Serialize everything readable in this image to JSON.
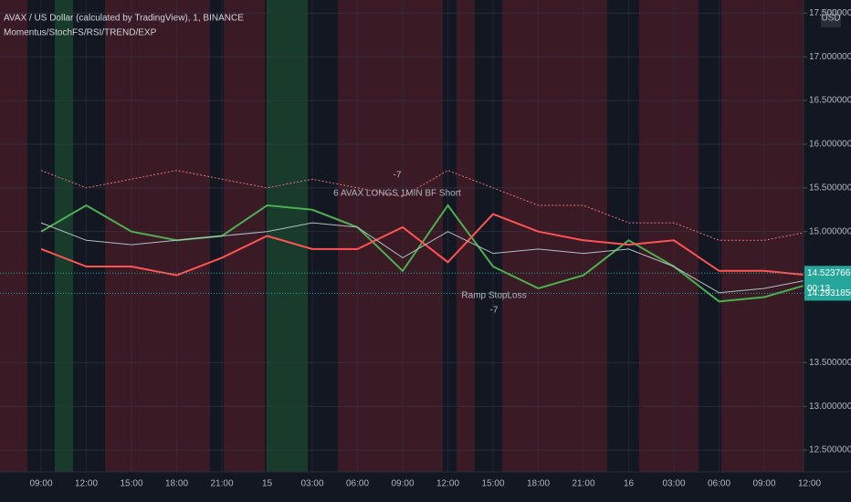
{
  "chart_data": {
    "type": "line",
    "title": "AVAX / US Dollar (calculated by TradingView), 1, BINANCE",
    "subtitle": "Momentus/StochFS/RSI/TREND/EXP",
    "currency": "USD",
    "categories": [
      "09:00",
      "12:00",
      "15:00",
      "18:00",
      "21:00",
      "15",
      "03:00",
      "06:00",
      "09:00",
      "12:00",
      "15:00",
      "18:00",
      "21:00",
      "16",
      "03:00",
      "06:00",
      "09:00",
      "12:00"
    ],
    "series": [
      {
        "color": "#e57373",
        "dash": true,
        "values": [
          15.7,
          15.5,
          15.6,
          15.7,
          15.6,
          15.5,
          15.6,
          15.5,
          15.4,
          15.7,
          15.5,
          15.3,
          15.3,
          15.1,
          15.1,
          14.9,
          14.9,
          15.0
        ]
      },
      {
        "color": "#4caf50",
        "values": [
          15.0,
          15.3,
          15.0,
          14.9,
          14.95,
          15.3,
          15.25,
          15.05,
          14.55,
          15.3,
          14.6,
          14.35,
          14.5,
          14.9,
          14.6,
          14.2,
          14.25,
          14.4
        ]
      },
      {
        "color": "#ff5252",
        "values": [
          14.8,
          14.6,
          14.6,
          14.5,
          14.7,
          14.95,
          14.8,
          14.8,
          15.05,
          14.65,
          15.2,
          15.0,
          14.9,
          14.85,
          14.9,
          14.55,
          14.55,
          14.5
        ]
      },
      {
        "color": "#b0bec5",
        "values": [
          15.1,
          14.9,
          14.85,
          14.9,
          14.95,
          15.0,
          15.1,
          15.05,
          14.7,
          15.0,
          14.75,
          14.8,
          14.75,
          14.8,
          14.6,
          14.3,
          14.35,
          14.45
        ]
      }
    ],
    "ylim": [
      12.25,
      17.65
    ],
    "yticks": [
      {
        "value": 17.5,
        "label": "17.50000000"
      },
      {
        "value": 17,
        "label": "17.00000000"
      },
      {
        "value": 16.5,
        "label": "16.50000000"
      },
      {
        "value": 16,
        "label": "16.00000000"
      },
      {
        "value": 15.5,
        "label": "15.50000000"
      },
      {
        "value": 15,
        "label": "15.00000000"
      },
      {
        "value": 13.5,
        "label": "13.50000000"
      },
      {
        "value": 13,
        "label": "13.00000000"
      },
      {
        "value": 12.5,
        "label": "12.50000000"
      }
    ],
    "grid": true,
    "price_markers": [
      {
        "value": 14.52376618,
        "label": "14.52376618",
        "color": "#26a69a"
      },
      {
        "value": 14.29318501,
        "label": "14.29318501",
        "color": "#26a69a"
      }
    ],
    "countdown": "00:13",
    "annotations": [
      "-7",
      "6 AVAX LONGS 1MIN BF Short",
      "Ramp StopLoss",
      "-7"
    ]
  }
}
